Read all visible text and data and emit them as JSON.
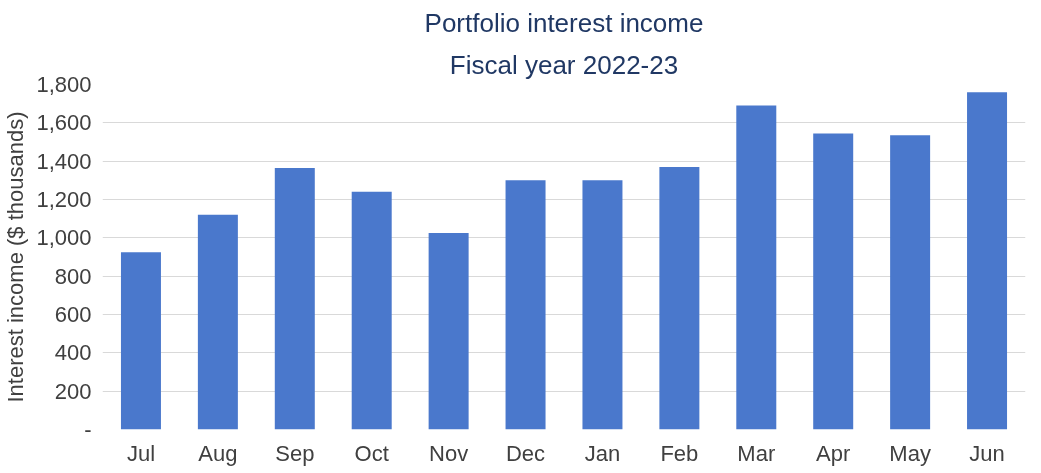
{
  "chart_data": {
    "type": "bar",
    "title": "Portfolio interest income",
    "subtitle": "Fiscal year 2022-23",
    "ylabel": "Interest income ($ thousands)",
    "categories": [
      "Jul",
      "Aug",
      "Sep",
      "Oct",
      "Nov",
      "Dec",
      "Jan",
      "Feb",
      "Mar",
      "Apr",
      "May",
      "Jun"
    ],
    "values": [
      925,
      1120,
      1365,
      1240,
      1025,
      1300,
      1300,
      1370,
      1690,
      1545,
      1535,
      1760
    ],
    "color": "#4a78cc",
    "ylim": [
      0,
      1800
    ],
    "yticks": [
      {
        "value": 0,
        "label": "-"
      },
      {
        "value": 200,
        "label": "200"
      },
      {
        "value": 400,
        "label": "400"
      },
      {
        "value": 600,
        "label": "600"
      },
      {
        "value": 800,
        "label": "800"
      },
      {
        "value": 1000,
        "label": "1,000"
      },
      {
        "value": 1200,
        "label": "1,200"
      },
      {
        "value": 1400,
        "label": "1,400"
      },
      {
        "value": 1600,
        "label": "1,600"
      },
      {
        "value": 1800,
        "label": "1,800"
      }
    ],
    "grid": "y"
  }
}
